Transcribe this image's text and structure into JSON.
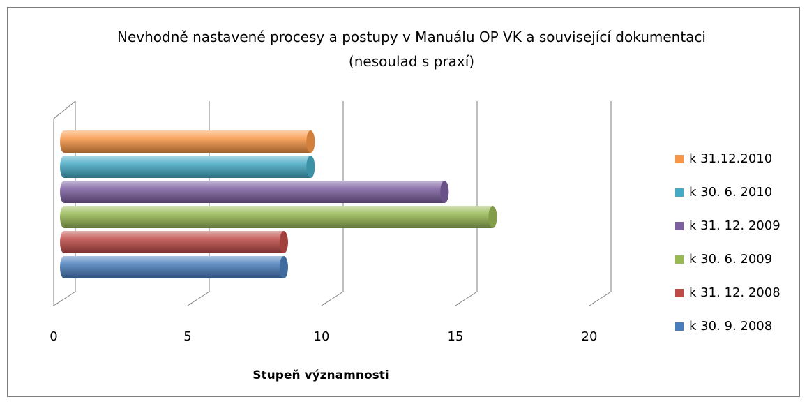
{
  "chart_data": {
    "type": "bar3d_horizontal",
    "title": "Nevhodně nastavené procesy a postupy v Manuálu OP VK a související dokumentaci (nesoulad s praxí)",
    "x_label": "Stupeň významnosti",
    "xlim": [
      0,
      20
    ],
    "xticks": [
      0,
      5,
      10,
      15,
      20
    ],
    "grid": true,
    "legend": "right",
    "series": [
      {
        "name": "k 30. 9. 2008",
        "color": "#4a7ebb",
        "values": [
          8.2
        ]
      },
      {
        "name": "k 31. 12. 2008",
        "color": "#be4b48",
        "values": [
          8.2
        ]
      },
      {
        "name": "k 30. 6. 2009",
        "color": "#98b954",
        "values": [
          16
        ]
      },
      {
        "name": "k 31. 12. 2009",
        "color": "#7d60a0",
        "values": [
          14.2
        ]
      },
      {
        "name": "k 30. 6. 2010",
        "color": "#46aac5",
        "values": [
          9.2
        ]
      },
      {
        "name": "k 31.12.2010",
        "color": "#f79646",
        "values": [
          9.2
        ]
      }
    ]
  }
}
